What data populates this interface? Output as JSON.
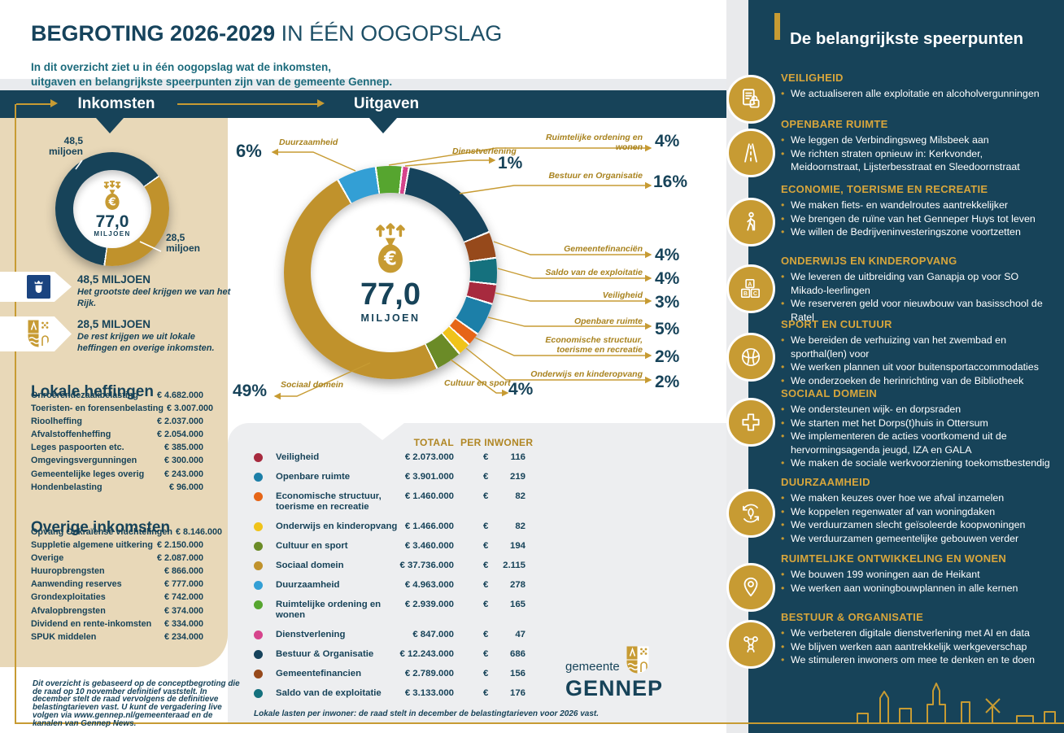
{
  "header": {
    "title_bold": "BEGROTING 2026-2029",
    "title_light": "IN ÉÉN OOGOPSLAG",
    "subtitle1": "In dit overzicht ziet u in één oogopslag wat de inkomsten,",
    "subtitle2": "uitgaven en belangrijkste speerpunten zijn van de gemeente Gennep."
  },
  "banner": {
    "income": "Inkomsten",
    "expenses": "Uitgaven"
  },
  "income": {
    "total": "77,0",
    "total_unit": "MILJOEN",
    "slice1_line1": "48,5",
    "slice1_line2": "miljoen",
    "slice2_line1": "28,5",
    "slice2_line2": "miljoen",
    "callouts": [
      {
        "icon": "rijksoverheid-crest-icon",
        "amount": "48,5 MILJOEN",
        "desc": "Het grootste deel krijgen we van het Rijk."
      },
      {
        "icon": "gennep-crest-icon",
        "amount": "28,5 MILJOEN",
        "desc": "De rest krijgen we uit lokale heffingen en overige inkomsten."
      }
    ],
    "lokale_heffingen": {
      "heading": "Lokale heffingen",
      "rows": [
        {
          "label": "Onroerendezaakbelasting",
          "value": "€ 4.682.000"
        },
        {
          "label": "Toeristen- en forensenbelasting",
          "value": "€ 3.007.000"
        },
        {
          "label": "Rioolheffing",
          "value": "€ 2.037.000"
        },
        {
          "label": "Afvalstoffenheffing",
          "value": "€ 2.054.000"
        },
        {
          "label": "Leges paspoorten etc.",
          "value": "€ 385.000"
        },
        {
          "label": "Omgevingsvergunningen",
          "value": "€ 300.000"
        },
        {
          "label": "Gemeentelijke leges overig",
          "value": "€ 243.000"
        },
        {
          "label": "Hondenbelasting",
          "value": "€ 96.000"
        }
      ]
    },
    "overige_inkomsten": {
      "heading": "Overige inkomsten",
      "rows": [
        {
          "label": "Opvang Oekraïense vluchtelingen",
          "value": "€ 8.146.000"
        },
        {
          "label": "Suppletie algemene uitkering",
          "value": "€ 2.150.000"
        },
        {
          "label": "Overige",
          "value": "€ 2.087.000"
        },
        {
          "label": "Huuropbrengsten",
          "value": "€ 866.000"
        },
        {
          "label": "Aanwending reserves",
          "value": "€ 777.000"
        },
        {
          "label": "Grondexploitaties",
          "value": "€ 742.000"
        },
        {
          "label": "Afvalopbrengsten",
          "value": "€ 374.000"
        },
        {
          "label": "Dividend en rente-inkomsten",
          "value": "€ 334.000"
        },
        {
          "label": "SPUK middelen",
          "value": "€ 234.000"
        }
      ]
    }
  },
  "expenses": {
    "total": "77,0",
    "total_unit": "MILJOEN",
    "segments": [
      {
        "category": "Ruimtelijke ordening en wonen",
        "pct": "4%",
        "value": 4,
        "color": "#56A52F"
      },
      {
        "category": "Dienstverlening",
        "pct": "1%",
        "value": 1,
        "color": "#D6448C"
      },
      {
        "category": "Bestuur en Organisatie",
        "pct": "16%",
        "value": 16,
        "color": "#16435C"
      },
      {
        "category": "Gemeentefinanciën",
        "pct": "4%",
        "value": 4,
        "color": "#96491B"
      },
      {
        "category": "Saldo van de exploitatie",
        "pct": "4%",
        "value": 4,
        "color": "#15717E"
      },
      {
        "category": "Veiligheid",
        "pct": "3%",
        "value": 3,
        "color": "#A72A3E"
      },
      {
        "category": "Openbare ruimte",
        "pct": "5%",
        "value": 5,
        "color": "#1C7FA8"
      },
      {
        "category": "Economische structuur, toerisme en recreatie",
        "pct": "2%",
        "value": 2,
        "color": "#E66517"
      },
      {
        "category": "Onderwijs en kinderopvang",
        "pct": "2%",
        "value": 2,
        "color": "#F0C31A"
      },
      {
        "category": "Cultuur en sport",
        "pct": "4%",
        "value": 4,
        "color": "#6B8B27"
      },
      {
        "category": "Sociaal domein",
        "pct": "49%",
        "value": 49,
        "color": "#C0922C"
      },
      {
        "category": "Duurzaamheid",
        "pct": "6%",
        "value": 6,
        "color": "#339FD5"
      }
    ]
  },
  "table": {
    "headers": {
      "totaal": "TOTAAL",
      "per_inwoner": "PER INWONER"
    },
    "rows": [
      {
        "label": "Veiligheid",
        "color": "#A72A3E",
        "totaal": "€ 2.073.000",
        "per": "€ 116"
      },
      {
        "label": "Openbare ruimte",
        "color": "#1C7FA8",
        "totaal": "€ 3.901.000",
        "per": "€ 219"
      },
      {
        "label": "Economische structuur, toerisme en recreatie",
        "color": "#E66517",
        "totaal": "€ 1.460.000",
        "per": "€ 82"
      },
      {
        "label": "Onderwijs en kinderopvang",
        "color": "#F0C31A",
        "totaal": "€ 1.466.000",
        "per": "€ 82"
      },
      {
        "label": "Cultuur en sport",
        "color": "#6B8B27",
        "totaal": "€ 3.460.000",
        "per": "€ 194"
      },
      {
        "label": "Sociaal domein",
        "color": "#C0922C",
        "totaal": "€ 37.736.000",
        "per": "€ 2.115"
      },
      {
        "label": "Duurzaamheid",
        "color": "#339FD5",
        "totaal": "€ 4.963.000",
        "per": "€ 278"
      },
      {
        "label": "Ruimtelijke ordening en wonen",
        "color": "#56A52F",
        "totaal": "€ 2.939.000",
        "per": "€ 165"
      },
      {
        "label": "Dienstverlening",
        "color": "#D6448C",
        "totaal": "€ 847.000",
        "per": "€ 47"
      },
      {
        "label": "Bestuur & Organisatie",
        "color": "#16435C",
        "totaal": "€ 12.243.000",
        "per": "€ 686"
      },
      {
        "label": "Gemeentefinancien",
        "color": "#96491B",
        "totaal": "€ 2.789.000",
        "per": "€ 156"
      },
      {
        "label": "Saldo van de exploitatie",
        "color": "#15717E",
        "totaal": "€ 3.133.000",
        "per": "€ 176"
      }
    ],
    "footnote": "Lokale lasten per inwoner: de raad stelt in december de belastingtarieven voor 2026 vast."
  },
  "disclaimer": "Dit overzicht is gebaseerd op de conceptbegroting die de raad op 10 november definitief vaststelt. In december stelt de raad vervolgens de definitieve belastingtarieven vast. U kunt de vergadering live volgen via www.gennep.nl/gemeenteraad en de kanalen van Gennep News.",
  "logo": {
    "gemeente": "gemeente",
    "name": "GENNEP"
  },
  "sidebar": {
    "heading": "De belangrijkste speerpunten",
    "sections": [
      {
        "icon": "document-lock-icon",
        "title": "VEILIGHEID",
        "bullets": [
          "We actualiseren alle exploitatie en alcoholvergunningen"
        ]
      },
      {
        "icon": "road-icon",
        "title": "OPENBARE RUIMTE",
        "bullets": [
          "We leggen de Verbindingsweg Milsbeek aan",
          "We richten straten opnieuw in: Kerkvonder, Meidoornstraat, Lijsterbesstraat en Sleedoornstraat"
        ]
      },
      {
        "icon": "hiker-icon",
        "title": "ECONOMIE, TOERISME EN RECREATIE",
        "bullets": [
          "We maken fiets- en wandelroutes aantrekkelijker",
          "We  brengen de ruïne van het Genneper Huys tot leven",
          "We willen de Bedrijveninvesteringszone voortzetten"
        ]
      },
      {
        "icon": "abc-blocks-icon",
        "title": "ONDERWIJS EN KINDEROPVANG",
        "bullets": [
          "We leveren de uitbreiding van Ganapja op voor SO Mikado-leerlingen",
          "We reserveren geld voor nieuwbouw van basisschool de Ratel"
        ]
      },
      {
        "icon": "volleyball-icon",
        "title": "SPORT EN CULTUUR",
        "bullets": [
          "We bereiden de verhuizing van het zwembad en sporthal(len) voor",
          "We werken plannen uit voor buitensportaccommodaties",
          "We onderzoeken de herinrichting van de Bibliotheek"
        ]
      },
      {
        "icon": "medical-cross-icon",
        "title": "SOCIAAL DOMEIN",
        "bullets": [
          "We ondersteunen wijk- en dorpsraden",
          "We starten met het Dorps(t)huis in Ottersum",
          "We implementeren de acties voortkomend uit de hervormingsagenda jeugd, IZA en GALA",
          "We maken de sociale werkvoorziening toekomstbestendig"
        ]
      },
      {
        "icon": "leaf-recycle-icon",
        "title": "DUURZAAMHEID",
        "bullets": [
          "We maken keuzes over hoe we afval inzamelen",
          "We koppelen regenwater af van woningdaken",
          "We verduurzamen slecht geïsoleerde koopwoningen",
          "We verduurzamen gemeentelijke gebouwen verder"
        ]
      },
      {
        "icon": "location-pin-icon",
        "title": "RUIMTELIJKE ONTWIKKELING EN WONEN",
        "bullets": [
          "We bouwen 199 woningen aan de Heikant",
          "We werken aan woningbouwplannen in alle kernen"
        ]
      },
      {
        "icon": "people-network-icon",
        "title": "BESTUUR & ORGANISATIE",
        "bullets": [
          "We verbeteren digitale dienstverlening met AI en data",
          "We blijven werken aan aantrekkelijk werkgeverschap",
          "We stimuleren inwoners om mee te denken en te doen"
        ]
      }
    ]
  },
  "colors": {
    "navy": "#174359",
    "gold": "#C79B33",
    "tan": "#E8D8B8",
    "panel_gray": "#EDEEF0",
    "teal_text": "#1C6B7C",
    "speerpunt_title_gold": "#D8A63C"
  },
  "chart_data": [
    {
      "type": "pie",
      "title": "Inkomsten",
      "total_label": "77,0 MILJOEN",
      "unit": "miljoen €",
      "slices": [
        {
          "label": "Van het Rijk",
          "value": 48.5,
          "color": "#174359"
        },
        {
          "label": "Lokale heffingen en overige inkomsten",
          "value": 28.5,
          "color": "#C0922C"
        }
      ]
    },
    {
      "type": "pie",
      "title": "Uitgaven",
      "total_label": "77,0 MILJOEN",
      "unit": "% van totaal",
      "slices": [
        {
          "label": "Ruimtelijke ordening en wonen",
          "value": 4,
          "color": "#56A52F"
        },
        {
          "label": "Dienstverlening",
          "value": 1,
          "color": "#D6448C"
        },
        {
          "label": "Bestuur en Organisatie",
          "value": 16,
          "color": "#16435C"
        },
        {
          "label": "Gemeentefinanciën",
          "value": 4,
          "color": "#96491B"
        },
        {
          "label": "Saldo van de exploitatie",
          "value": 4,
          "color": "#15717E"
        },
        {
          "label": "Veiligheid",
          "value": 3,
          "color": "#A72A3E"
        },
        {
          "label": "Openbare ruimte",
          "value": 5,
          "color": "#1C7FA8"
        },
        {
          "label": "Economische structuur, toerisme en recreatie",
          "value": 2,
          "color": "#E66517"
        },
        {
          "label": "Onderwijs en kinderopvang",
          "value": 2,
          "color": "#F0C31A"
        },
        {
          "label": "Cultuur en sport",
          "value": 4,
          "color": "#6B8B27"
        },
        {
          "label": "Sociaal domein",
          "value": 49,
          "color": "#C0922C"
        },
        {
          "label": "Duurzaamheid",
          "value": 6,
          "color": "#339FD5"
        }
      ]
    }
  ]
}
